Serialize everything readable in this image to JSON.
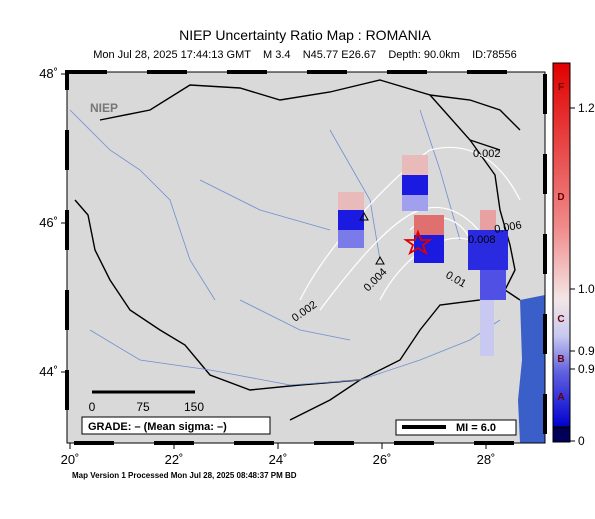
{
  "map": {
    "title": "NIEP Uncertainty Ratio Map : ROMANIA",
    "subtitle": "Mon Jul 28, 2025 17:44:13 GMT    M 3.4    N45.77 E26.67    Depth: 90.0km    ID:78556",
    "logo": "NIEP",
    "lon_ticks": [
      {
        "value": 20,
        "label": "20˚"
      },
      {
        "value": 22,
        "label": "22˚"
      },
      {
        "value": 24,
        "label": "24˚"
      },
      {
        "value": 26,
        "label": "26˚"
      },
      {
        "value": 28,
        "label": "28˚"
      }
    ],
    "lat_ticks": [
      {
        "value": 48,
        "label": "48˚"
      },
      {
        "value": 46,
        "label": "46˚"
      },
      {
        "value": 44,
        "label": "44˚"
      }
    ],
    "contour_labels": [
      "0.002",
      "0.004",
      "0.006",
      "0.01",
      "0.008",
      "0.002"
    ],
    "colorbar": {
      "labels": [
        "1.2",
        "1.0",
        "0.9",
        "0.9",
        "0"
      ],
      "grades": [
        "F",
        "D",
        "C",
        "B",
        "A"
      ]
    },
    "scale_bar": [
      "0",
      "75",
      "150"
    ],
    "grade": "GRADE: – (Mean sigma: –)",
    "mi": "MI = 6.0",
    "footer": "Map Version 1 Processed Mon Jul 28, 2025 08:48:37 PM BD"
  }
}
